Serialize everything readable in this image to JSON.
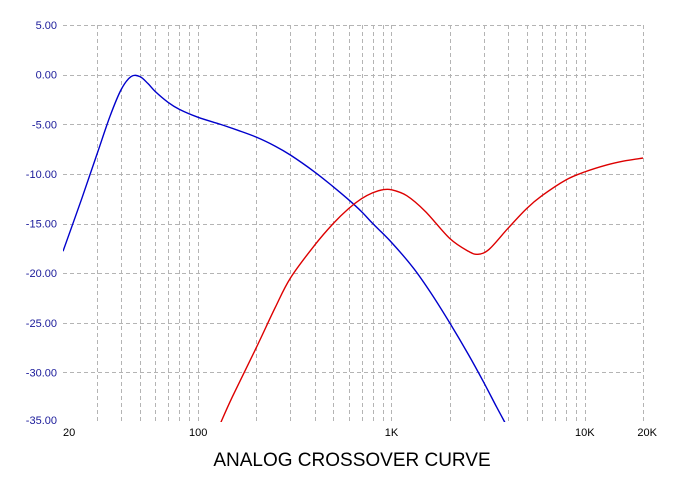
{
  "chart_data": {
    "type": "line",
    "title": "ANALOG CROSSOVER CURVE",
    "xlabel": "",
    "ylabel": "",
    "x_scale": "log",
    "xlim": [
      20,
      20000
    ],
    "ylim": [
      -35,
      5
    ],
    "grid": true,
    "y_ticks": [
      5,
      0,
      -5,
      -10,
      -15,
      -20,
      -25,
      -30,
      -35
    ],
    "y_tick_labels": [
      "5.00",
      "0.00",
      "-5.00",
      "-10.00",
      "-15.00",
      "-20.00",
      "-25.00",
      "-30.00",
      "-35.00"
    ],
    "x_ticks": [
      20,
      100,
      1000,
      10000,
      20000
    ],
    "x_tick_labels": [
      "20",
      "100",
      "1K",
      "10K",
      "20K"
    ],
    "series": [
      {
        "color": "#0000cc",
        "points": [
          [
            20,
            -17.8
          ],
          [
            25,
            -12.5
          ],
          [
            30,
            -8.0
          ],
          [
            35,
            -4.2
          ],
          [
            40,
            -1.5
          ],
          [
            45,
            -0.2
          ],
          [
            50,
            -0.2
          ],
          [
            55,
            -0.9
          ],
          [
            60,
            -1.7
          ],
          [
            70,
            -2.8
          ],
          [
            80,
            -3.5
          ],
          [
            100,
            -4.3
          ],
          [
            130,
            -5.0
          ],
          [
            160,
            -5.6
          ],
          [
            200,
            -6.3
          ],
          [
            250,
            -7.2
          ],
          [
            300,
            -8.1
          ],
          [
            400,
            -9.8
          ],
          [
            500,
            -11.3
          ],
          [
            600,
            -12.6
          ],
          [
            700,
            -13.8
          ],
          [
            800,
            -15.0
          ],
          [
            1000,
            -16.9
          ],
          [
            1300,
            -19.5
          ],
          [
            1600,
            -22.0
          ],
          [
            2000,
            -25.0
          ],
          [
            2500,
            -28.2
          ],
          [
            3000,
            -31.0
          ],
          [
            3500,
            -33.5
          ],
          [
            3900,
            -35.2
          ]
        ]
      },
      {
        "color": "#dd0000",
        "points": [
          [
            130,
            -35.2
          ],
          [
            150,
            -32.5
          ],
          [
            200,
            -27.5
          ],
          [
            250,
            -23.5
          ],
          [
            300,
            -20.5
          ],
          [
            400,
            -17.2
          ],
          [
            500,
            -15.0
          ],
          [
            600,
            -13.5
          ],
          [
            700,
            -12.5
          ],
          [
            800,
            -11.9
          ],
          [
            900,
            -11.6
          ],
          [
            1000,
            -11.6
          ],
          [
            1200,
            -12.2
          ],
          [
            1500,
            -13.8
          ],
          [
            2000,
            -16.5
          ],
          [
            2500,
            -17.8
          ],
          [
            2800,
            -18.1
          ],
          [
            3200,
            -17.6
          ],
          [
            4000,
            -15.5
          ],
          [
            5000,
            -13.5
          ],
          [
            6000,
            -12.2
          ],
          [
            8000,
            -10.6
          ],
          [
            10000,
            -9.8
          ],
          [
            13000,
            -9.1
          ],
          [
            16000,
            -8.7
          ],
          [
            20000,
            -8.4
          ]
        ]
      }
    ]
  }
}
